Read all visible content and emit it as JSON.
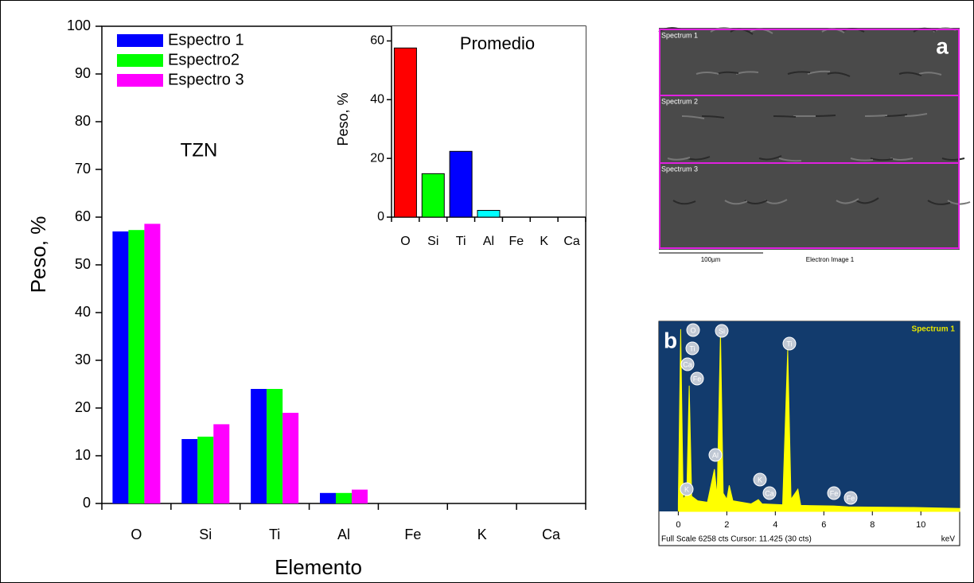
{
  "chart_data": [
    {
      "type": "grouped-bar",
      "annotation": "TZN",
      "y_label": "Peso, %",
      "x_label": "Elemento",
      "categories": [
        "O",
        "Si",
        "Ti",
        "Al",
        "Fe",
        "K",
        "Ca"
      ],
      "series": [
        {
          "name": "Espectro 1",
          "color": "#0000ff",
          "values": [
            57,
            13.5,
            24,
            2.2,
            0,
            0,
            0
          ]
        },
        {
          "name": "Espectro2",
          "color": "#00ff00",
          "values": [
            57.3,
            14,
            24,
            2.2,
            0,
            0,
            0
          ]
        },
        {
          "name": "Espectro 3",
          "color": "#ff00ff",
          "values": [
            58.6,
            16.6,
            19,
            2.9,
            0,
            0,
            0
          ]
        }
      ],
      "ylim": [
        0,
        100
      ],
      "yticks": [
        0,
        10,
        20,
        30,
        40,
        50,
        60,
        70,
        80,
        90,
        100
      ],
      "legend": "top-left"
    },
    {
      "type": "bar",
      "title": "Promedio",
      "y_label": "Peso, %",
      "categories": [
        "O",
        "Si",
        "Ti",
        "Al",
        "Fe",
        "K",
        "Ca"
      ],
      "values": [
        57.6,
        14.8,
        22.4,
        2.3,
        0,
        0,
        0
      ],
      "colors": [
        "#ff0000",
        "#00ff00",
        "#0000ff",
        "#00ffff",
        "#ff9900",
        "#999999",
        "#996633"
      ],
      "ylim": [
        0,
        65
      ],
      "yticks": [
        0,
        20,
        40,
        60
      ]
    },
    {
      "type": "area",
      "title": "Spectrum 1",
      "panel": "b",
      "x_label": "keV",
      "footer": "Full Scale 6258 cts Cursor: 11.425  (30 cts)",
      "x": [
        0,
        0.1,
        0.2,
        0.35,
        0.45,
        0.55,
        0.8,
        1.2,
        1.49,
        1.6,
        1.74,
        1.85,
        2.0,
        2.1,
        2.25,
        3.0,
        3.3,
        3.45,
        4.3,
        4.51,
        4.65,
        4.93,
        5.05,
        6.4,
        7.0,
        9.7,
        11.6
      ],
      "values": [
        300,
        6000,
        400,
        600,
        4140,
        500,
        350,
        300,
        1390,
        500,
        5890,
        600,
        400,
        860,
        350,
        250,
        390,
        250,
        220,
        5315,
        400,
        730,
        200,
        180,
        150,
        130,
        100
      ],
      "color": "#ffff00",
      "xlim": [
        -0.8,
        11.6
      ],
      "xticks": [
        0,
        2,
        4,
        6,
        8,
        10
      ],
      "ylim": [
        0,
        6258
      ],
      "peak_labels": [
        "O",
        "Ti",
        "Ca",
        "Fe",
        "Si",
        "Ti",
        "Al",
        "K",
        "K",
        "Ca",
        "Fe",
        "Fe"
      ]
    }
  ],
  "panel_a": {
    "panel": "a",
    "regions": [
      "Spectrum 1",
      "Spectrum 2",
      "Spectrum 3"
    ],
    "scale_bar": "100µm",
    "caption": "Electron Image 1"
  }
}
